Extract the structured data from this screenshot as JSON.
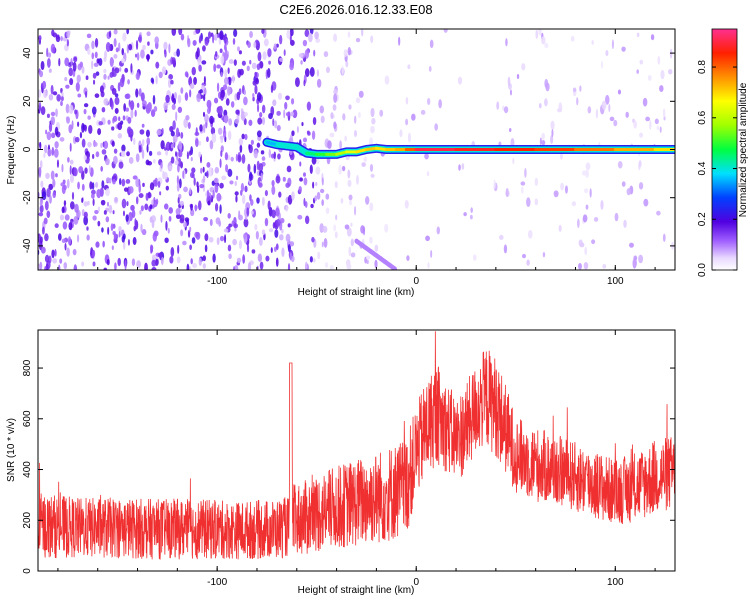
{
  "title": "C2E6.2026.016.12.33.E08",
  "chart_data": [
    {
      "type": "heatmap",
      "xlabel": "Height of straight line (km)",
      "ylabel": "Frequency (Hz)",
      "xlim": [
        -190,
        130
      ],
      "ylim": [
        -50,
        50
      ],
      "xticks": [
        -100,
        0,
        100
      ],
      "yticks": [
        -40,
        -20,
        0,
        20,
        40
      ],
      "colorbar": {
        "label": "Normalized spectral amplitude",
        "range": [
          0,
          0.95
        ],
        "ticks": [
          0.0,
          0.2,
          0.4,
          0.6,
          0.8
        ]
      },
      "ridge": [
        {
          "x": -75,
          "y": 3,
          "v": 0.35
        },
        {
          "x": -70,
          "y": 2,
          "v": 0.4
        },
        {
          "x": -65,
          "y": 1.5,
          "v": 0.45
        },
        {
          "x": -60,
          "y": 1,
          "v": 0.4
        },
        {
          "x": -55,
          "y": -1.5,
          "v": 0.45
        },
        {
          "x": -50,
          "y": -2,
          "v": 0.5
        },
        {
          "x": -45,
          "y": -2,
          "v": 0.55
        },
        {
          "x": -40,
          "y": -2,
          "v": 0.6
        },
        {
          "x": -35,
          "y": -1,
          "v": 0.65
        },
        {
          "x": -30,
          "y": -1,
          "v": 0.7
        },
        {
          "x": -25,
          "y": 0,
          "v": 0.75
        },
        {
          "x": -20,
          "y": 0.5,
          "v": 0.75
        },
        {
          "x": -15,
          "y": 0,
          "v": 0.7
        },
        {
          "x": -10,
          "y": 0,
          "v": 0.8
        },
        {
          "x": -5,
          "y": 0,
          "v": 0.75
        },
        {
          "x": 0,
          "y": 0,
          "v": 0.95
        },
        {
          "x": 20,
          "y": 0,
          "v": 0.95
        },
        {
          "x": 40,
          "y": 0,
          "v": 0.9
        },
        {
          "x": 60,
          "y": 0,
          "v": 0.9
        },
        {
          "x": 80,
          "y": 0,
          "v": 0.85
        },
        {
          "x": 100,
          "y": 0,
          "v": 0.8
        },
        {
          "x": 120,
          "y": 0,
          "v": 0.75
        },
        {
          "x": 130,
          "y": 0,
          "v": 0.7
        }
      ]
    },
    {
      "type": "line",
      "xlabel": "Height of straight line (km)",
      "ylabel": "SNR (10 * v/v)",
      "xlim": [
        -190,
        130
      ],
      "ylim": [
        0,
        950
      ],
      "xticks": [
        -100,
        0,
        100
      ],
      "yticks": [
        0,
        200,
        400,
        600,
        800
      ],
      "color": "#f03030",
      "series": [
        {
          "x": [
            -190,
            -170,
            -150,
            -130,
            -110,
            -90,
            -70,
            -64,
            -62,
            -55,
            -45,
            -35,
            -25,
            -15,
            -5,
            0,
            5,
            10,
            15,
            20,
            25,
            30,
            35,
            40,
            45,
            50,
            60,
            70,
            80,
            90,
            100,
            110,
            120,
            130
          ],
          "y": [
            180,
            170,
            170,
            165,
            165,
            160,
            165,
            175,
            200,
            210,
            240,
            260,
            280,
            300,
            330,
            470,
            560,
            620,
            570,
            520,
            560,
            640,
            690,
            650,
            560,
            460,
            420,
            400,
            370,
            340,
            310,
            330,
            370,
            390
          ],
          "spread": [
            130,
            120,
            120,
            120,
            120,
            115,
            120,
            120,
            140,
            150,
            160,
            170,
            180,
            190,
            200,
            180,
            200,
            200,
            180,
            170,
            180,
            180,
            200,
            200,
            180,
            150,
            150,
            140,
            140,
            140,
            130,
            140,
            150,
            150
          ]
        }
      ]
    }
  ]
}
